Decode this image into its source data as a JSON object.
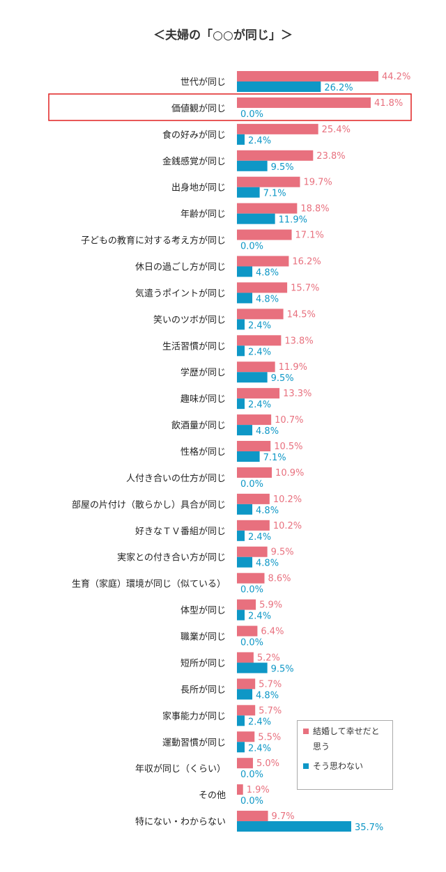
{
  "title": "＜夫婦の「○○が同じ」＞",
  "colors": {
    "happy": "#e8707e",
    "not_happy": "#0e97c6",
    "highlight": "#e02020"
  },
  "highlight_category": "価値観が同じ",
  "legend": [
    {
      "name": "結婚して幸せだと思う",
      "color_key": "happy"
    },
    {
      "name": "そう思わない",
      "color_key": "not_happy"
    }
  ],
  "chart_data": {
    "type": "bar",
    "orientation": "horizontal",
    "unit": "%",
    "xlim": [
      0,
      50
    ],
    "grid": false,
    "legend_position": "bottom-right",
    "categories": [
      "世代が同じ",
      "価値観が同じ",
      "食の好みが同じ",
      "金銭感覚が同じ",
      "出身地が同じ",
      "年齢が同じ",
      "子どもの教育に対する考え方が同じ",
      "休日の過ごし方が同じ",
      "気遣うポイントが同じ",
      "笑いのツボが同じ",
      "生活習慣が同じ",
      "学歴が同じ",
      "趣味が同じ",
      "飲酒量が同じ",
      "性格が同じ",
      "人付き合いの仕方が同じ",
      "部屋の片付け（散らかし）具合が同じ",
      "好きなＴＶ番組が同じ",
      "実家との付き合い方が同じ",
      "生育（家庭）環境が同じ（似ている）",
      "体型が同じ",
      "職業が同じ",
      "短所が同じ",
      "長所が同じ",
      "家事能力が同じ",
      "運動習慣が同じ",
      "年収が同じ（くらい）",
      "その他",
      "特にない・わからない"
    ],
    "series": [
      {
        "name": "結婚して幸せだと思う",
        "values": [
          44.2,
          41.8,
          25.4,
          23.8,
          19.7,
          18.8,
          17.1,
          16.2,
          15.7,
          14.5,
          13.8,
          11.9,
          13.3,
          10.7,
          10.5,
          10.9,
          10.2,
          10.2,
          9.5,
          8.6,
          5.9,
          6.4,
          5.2,
          5.7,
          5.7,
          5.5,
          5.0,
          1.9,
          9.7
        ]
      },
      {
        "name": "そう思わない",
        "values": [
          26.2,
          0.0,
          2.4,
          9.5,
          7.1,
          11.9,
          0.0,
          4.8,
          4.8,
          2.4,
          2.4,
          9.5,
          2.4,
          4.8,
          7.1,
          0.0,
          4.8,
          2.4,
          4.8,
          0.0,
          2.4,
          0.0,
          9.5,
          4.8,
          2.4,
          2.4,
          0.0,
          0.0,
          35.7
        ]
      }
    ]
  }
}
